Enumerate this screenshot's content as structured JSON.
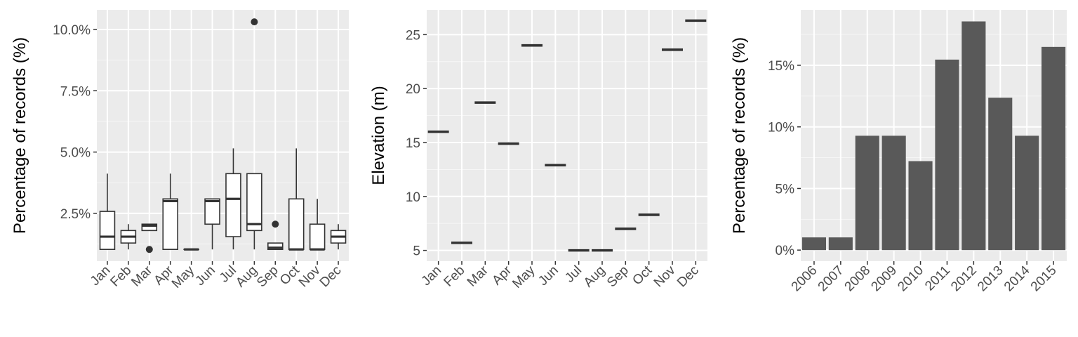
{
  "colors": {
    "panel_bg": "#ebebeb",
    "grid_major": "#ffffff",
    "bar_fill": "#595959",
    "box_line": "#333333",
    "box_fill": "#ffffff",
    "tick_text": "#4d4d4d"
  },
  "chart_data": [
    {
      "type": "boxplot",
      "ylabel": "Percentage of records (%)",
      "xlabel": "",
      "categories": [
        "Jan",
        "Feb",
        "Mar",
        "Apr",
        "May",
        "Jun",
        "Jul",
        "Aug",
        "Sep",
        "Oct",
        "Nov",
        "Dec"
      ],
      "yticks": [
        2.5,
        5.0,
        7.5,
        10.0
      ],
      "ytick_labels": [
        "2.5%",
        "5.0%",
        "7.5%",
        "10.0%"
      ],
      "ylim": [
        0.55,
        10.8
      ],
      "grid": true,
      "boxes": [
        {
          "min": 1.03,
          "q1": 1.03,
          "median": 1.55,
          "q3": 2.58,
          "max": 4.12,
          "outliers": []
        },
        {
          "min": 1.03,
          "q1": 1.29,
          "median": 1.55,
          "q3": 1.8,
          "max": 2.06,
          "outliers": []
        },
        {
          "min": 1.8,
          "q1": 1.8,
          "median": 2.0,
          "q3": 2.06,
          "max": 2.06,
          "outliers": [
            1.03
          ]
        },
        {
          "min": 1.03,
          "q1": 1.03,
          "median": 3.0,
          "q3": 3.09,
          "max": 4.12,
          "outliers": []
        },
        {
          "min": 1.03,
          "q1": 1.03,
          "median": 1.03,
          "q3": 1.03,
          "max": 1.03,
          "outliers": []
        },
        {
          "min": 1.03,
          "q1": 2.06,
          "median": 3.0,
          "q3": 3.09,
          "max": 3.09,
          "outliers": []
        },
        {
          "min": 1.03,
          "q1": 1.55,
          "median": 3.09,
          "q3": 4.12,
          "max": 5.15,
          "outliers": []
        },
        {
          "min": 1.03,
          "q1": 1.8,
          "median": 2.06,
          "q3": 4.12,
          "max": 4.12,
          "outliers": [
            10.31
          ]
        },
        {
          "min": 1.03,
          "q1": 1.03,
          "median": 1.1,
          "q3": 1.29,
          "max": 1.29,
          "outliers": [
            2.06
          ]
        },
        {
          "min": 1.03,
          "q1": 1.03,
          "median": 1.03,
          "q3": 3.09,
          "max": 5.15,
          "outliers": []
        },
        {
          "min": 1.03,
          "q1": 1.03,
          "median": 1.03,
          "q3": 2.06,
          "max": 3.09,
          "outliers": []
        },
        {
          "min": 1.03,
          "q1": 1.29,
          "median": 1.55,
          "q3": 1.8,
          "max": 2.06,
          "outliers": []
        }
      ]
    },
    {
      "type": "crossbar",
      "ylabel": "Elevation (m)",
      "xlabel": "",
      "categories": [
        "Jan",
        "Feb",
        "Mar",
        "Apr",
        "May",
        "Jun",
        "Jul",
        "Aug",
        "Sep",
        "Oct",
        "Nov",
        "Dec"
      ],
      "values": [
        16.0,
        5.7,
        18.7,
        14.9,
        24.0,
        12.9,
        5.0,
        5.0,
        7.0,
        8.3,
        23.6,
        26.3
      ],
      "yticks": [
        5,
        10,
        15,
        20,
        25
      ],
      "ytick_labels": [
        "5",
        "10",
        "15",
        "20",
        "25"
      ],
      "ylim": [
        4.0,
        27.3
      ],
      "grid": true
    },
    {
      "type": "bar",
      "ylabel": "Percentage of records (%)",
      "xlabel": "",
      "categories": [
        "2006",
        "2007",
        "2008",
        "2009",
        "2010",
        "2011",
        "2012",
        "2013",
        "2014",
        "2015"
      ],
      "values": [
        1.03,
        1.03,
        9.28,
        9.28,
        7.22,
        15.46,
        18.56,
        12.37,
        9.28,
        16.49
      ],
      "yticks": [
        0,
        5,
        10,
        15
      ],
      "ytick_labels": [
        "0%",
        "5%",
        "10%",
        "15%"
      ],
      "ylim": [
        -0.9,
        19.5
      ],
      "grid": true
    }
  ]
}
